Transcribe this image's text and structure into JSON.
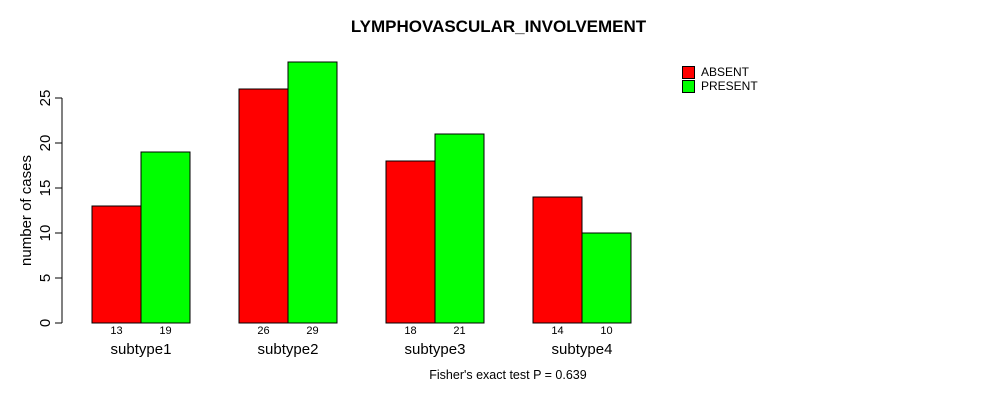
{
  "chart_data": {
    "type": "bar",
    "grouped": true,
    "title": "LYMPHOVASCULAR_INVOLVEMENT",
    "categories": [
      "subtype1",
      "subtype2",
      "subtype3",
      "subtype4"
    ],
    "series": [
      {
        "name": "ABSENT",
        "color": "#ff0000",
        "values": [
          13,
          26,
          18,
          14
        ]
      },
      {
        "name": "PRESENT",
        "color": "#00ff00",
        "values": [
          19,
          29,
          21,
          10
        ]
      }
    ],
    "xlabel": "",
    "ylabel": "number of cases",
    "yticks": [
      0,
      5,
      10,
      15,
      20,
      25
    ],
    "ylim": [
      0,
      25
    ],
    "bar_value_labels_shown": true,
    "grid": false,
    "legend_position": "top-right",
    "bar_border_color": "#000000",
    "footnote": "Fisher's exact test P = 0.639"
  }
}
